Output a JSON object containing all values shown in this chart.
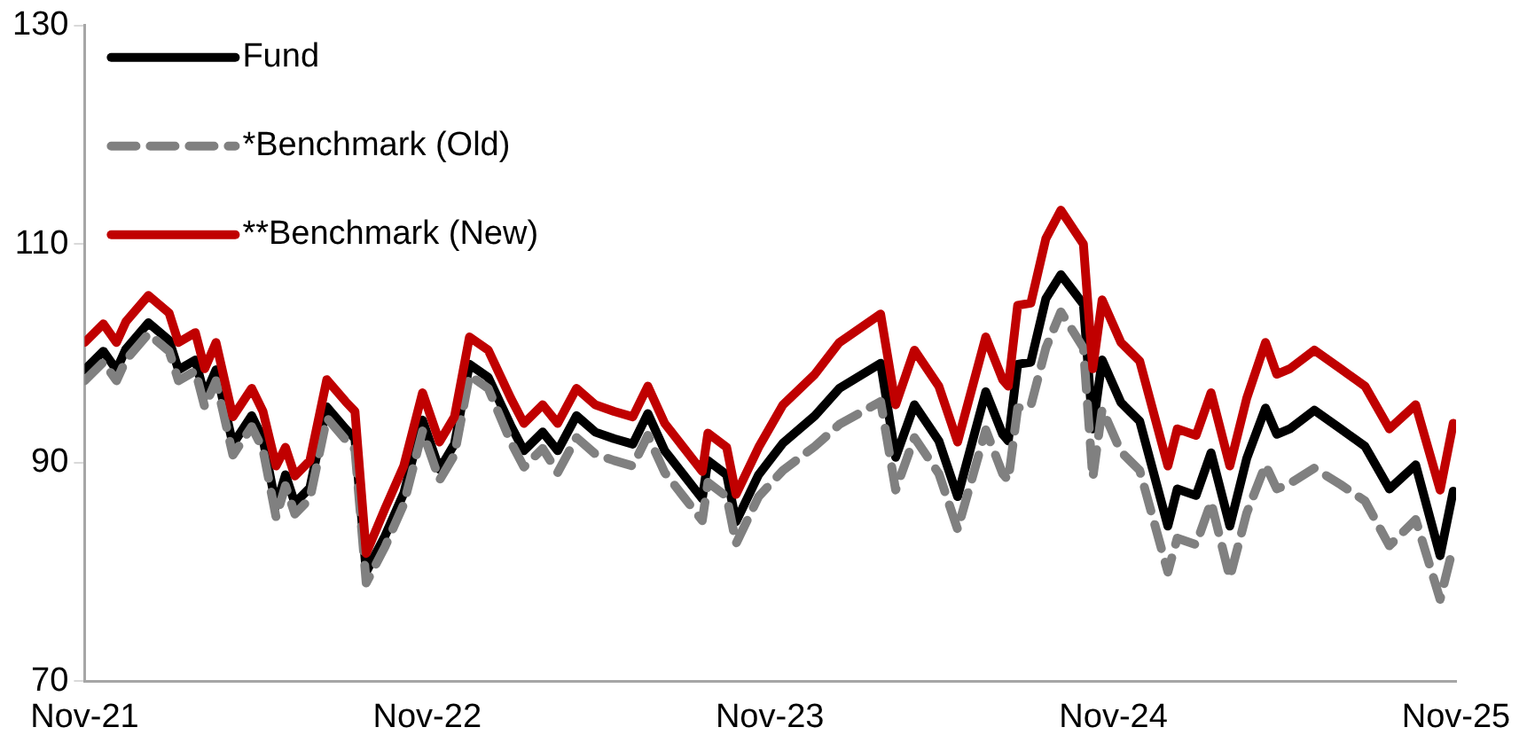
{
  "chart_data": {
    "type": "line",
    "legend": "top left",
    "grid": false,
    "marker": "none",
    "xlim": [
      "2021-11-01",
      "2025-11-01"
    ],
    "xticks": [
      {
        "value": "2021-11-01",
        "label": "Nov-21"
      },
      {
        "value": "2022-11-01",
        "label": "Nov-22"
      },
      {
        "value": "2023-11-01",
        "label": "Nov-23"
      },
      {
        "value": "2024-11-01",
        "label": "Nov-24"
      },
      {
        "value": "2025-11-01",
        "label": "Nov-25"
      }
    ],
    "ylim": [
      70,
      130
    ],
    "yticks": [
      70,
      90,
      110,
      130
    ],
    "x": [
      "2021-11-01",
      "2021-11-21",
      "2021-12-05",
      "2021-12-15",
      "2022-01-08",
      "2022-01-30",
      "2022-02-09",
      "2022-02-27",
      "2022-03-09",
      "2022-03-21",
      "2022-04-08",
      "2022-04-28",
      "2022-05-10",
      "2022-05-24",
      "2022-06-03",
      "2022-06-13",
      "2022-06-29",
      "2022-07-17",
      "2022-08-06",
      "2022-08-16",
      "2022-08-28",
      "2022-09-17",
      "2022-10-07",
      "2022-10-27",
      "2022-11-14",
      "2022-11-30",
      "2022-12-16",
      "2023-01-05",
      "2023-01-29",
      "2023-02-12",
      "2023-03-04",
      "2023-03-20",
      "2023-04-09",
      "2023-04-29",
      "2023-05-19",
      "2023-06-08",
      "2023-06-24",
      "2023-07-12",
      "2023-08-01",
      "2023-08-21",
      "2023-08-27",
      "2023-09-16",
      "2023-09-26",
      "2023-10-20",
      "2023-11-15",
      "2023-12-19",
      "2024-01-14",
      "2024-02-27",
      "2024-03-14",
      "2024-04-03",
      "2024-04-29",
      "2024-05-19",
      "2024-06-18",
      "2024-07-06",
      "2024-07-12",
      "2024-07-22",
      "2024-08-05",
      "2024-08-21",
      "2024-09-06",
      "2024-09-30",
      "2024-10-10",
      "2024-10-20",
      "2024-11-09",
      "2024-11-29",
      "2024-12-29",
      "2025-01-08",
      "2025-01-28",
      "2025-02-13",
      "2025-03-05",
      "2025-03-23",
      "2025-04-12",
      "2025-04-24",
      "2025-05-08",
      "2025-06-03",
      "2025-07-01",
      "2025-07-27",
      "2025-08-22",
      "2025-09-19",
      "2025-10-15",
      "2025-10-29"
    ],
    "series": [
      {
        "name": "Fund",
        "color": "#000000",
        "line_style": "solid",
        "values": [
          98.5,
          100.2,
          98.5,
          100.4,
          102.8,
          101.2,
          98.5,
          99.4,
          96.1,
          98.5,
          91.7,
          94.3,
          92.2,
          86,
          88.9,
          86.3,
          87.7,
          95.1,
          93.1,
          92.2,
          80,
          83.3,
          87.2,
          93.9,
          89.4,
          91.7,
          99,
          97.8,
          93.4,
          91.1,
          92.8,
          91.1,
          94.3,
          92.8,
          92.2,
          91.7,
          94.5,
          91.1,
          88.9,
          86.7,
          90.2,
          88.9,
          84.6,
          88.9,
          91.8,
          94.3,
          96.8,
          99.1,
          90.5,
          95.3,
          92,
          86.9,
          96.5,
          92.6,
          92,
          99,
          99.2,
          105,
          107.2,
          104.5,
          93.1,
          99.4,
          95.5,
          93.8,
          84.2,
          87.6,
          87,
          90.9,
          84.2,
          90.4,
          95,
          92.6,
          93.1,
          94.8,
          93.1,
          91.5,
          87.6,
          89.8,
          81.5,
          87.4
        ]
      },
      {
        "name": "*Benchmark (Old)",
        "color": "#808080",
        "line_style": "dashed",
        "values": [
          97.5,
          99.2,
          97.5,
          99.4,
          101.8,
          100.2,
          97.5,
          98.4,
          95.1,
          97.5,
          90.7,
          93.3,
          91.2,
          85,
          87.9,
          85.3,
          86.7,
          94.1,
          92.1,
          91.2,
          79,
          82.3,
          86.2,
          92.9,
          88.4,
          90.7,
          98,
          96.8,
          91.9,
          89.6,
          91.3,
          89.1,
          92.3,
          90.8,
          90.2,
          89.7,
          92.5,
          89.1,
          86.9,
          84.7,
          88.2,
          86.9,
          82.6,
          86.9,
          89.3,
          91.5,
          93.5,
          95.6,
          87.5,
          92.3,
          89,
          83.9,
          93,
          89,
          88.4,
          95,
          95.2,
          100.5,
          103.8,
          100.5,
          88.6,
          94.9,
          91,
          89.3,
          80,
          83.1,
          82.5,
          86.4,
          79.5,
          85.4,
          89.8,
          87.6,
          88.1,
          89.5,
          88,
          86.5,
          82.4,
          84.8,
          77.5,
          82.3
        ]
      },
      {
        "name": "**Benchmark (New)",
        "color": "#c00000",
        "line_style": "solid",
        "values": [
          101,
          102.7,
          101,
          102.9,
          105.3,
          103.7,
          101,
          101.9,
          98.6,
          101,
          94.2,
          96.8,
          94.7,
          89.7,
          91.4,
          88.8,
          90.2,
          97.6,
          95.6,
          94.7,
          81.7,
          85.8,
          89.7,
          96.4,
          91.9,
          94.2,
          101.5,
          100.3,
          95.9,
          93.6,
          95.3,
          93.6,
          96.8,
          95.3,
          94.7,
          94.2,
          97,
          93.6,
          91.4,
          89.2,
          92.7,
          91.4,
          87.1,
          91.4,
          95.3,
          98.1,
          101,
          103.6,
          95.3,
          100.3,
          97,
          91.9,
          101.5,
          97.6,
          97,
          104.4,
          104.6,
          110.5,
          113.1,
          110,
          98.6,
          104.9,
          101,
          99.3,
          89.7,
          93.1,
          92.5,
          96.4,
          89.7,
          95.9,
          101,
          98.1,
          98.6,
          100.3,
          98.6,
          97,
          93.1,
          95.3,
          87.5,
          93.6
        ]
      }
    ]
  }
}
